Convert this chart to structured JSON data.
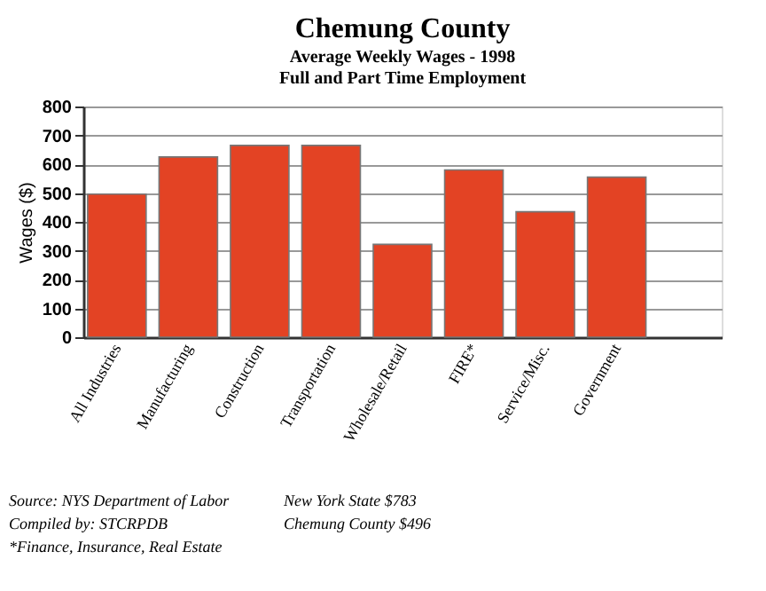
{
  "chart_data": {
    "type": "bar",
    "title": "Chemung County",
    "subtitle": [
      "Average Weekly Wages - 1998",
      "Full and Part Time Employment"
    ],
    "ylabel": "Wages ($)",
    "categories": [
      "All Industries",
      "Manufacturing",
      "Construction",
      "Transportation",
      "Wholesale/Retail",
      "FIRE*",
      "Service/Misc.",
      "Government"
    ],
    "values": [
      496,
      625,
      665,
      665,
      322,
      580,
      435,
      555
    ],
    "color": "#e34324",
    "ylim": [
      0,
      800
    ],
    "yticks": [
      0,
      100,
      200,
      300,
      400,
      500,
      600,
      700,
      800
    ],
    "grid": "y",
    "annotations": [
      "Source: NYS Department of Labor",
      "Compiled by: STCRPDB",
      "*Finance, Insurance, Real Estate",
      "New York State    $783",
      "Chemung County  $496"
    ]
  }
}
